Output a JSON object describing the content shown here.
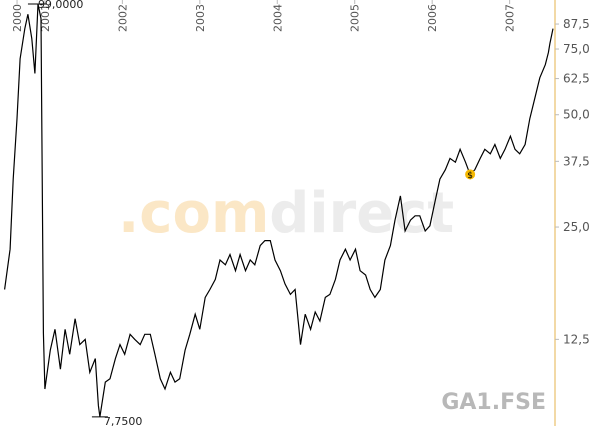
{
  "chart_data": {
    "type": "line",
    "symbol": "GA1.FSE",
    "watermark_a": ".com",
    "watermark_b": "direct",
    "high_label": "99,0000",
    "low_label": "7,7500",
    "dividend_marker": {
      "label": "$",
      "x": 2006.49
    },
    "log_scale": true,
    "grid": false,
    "color": "#000000",
    "xlim": [
      2000.42,
      2007.56
    ],
    "xticks": [
      {
        "value": 2000.64,
        "label": "2000"
      },
      2001,
      2002,
      2003,
      2004,
      2005,
      2006,
      2007
    ],
    "ylim": [
      7.6,
      101.5
    ],
    "yticks": [
      {
        "value": 12.5,
        "label": "12,5"
      },
      {
        "value": 25,
        "label": "25,0"
      },
      {
        "value": 37.5,
        "label": "37,5"
      },
      {
        "value": 50,
        "label": "50,0"
      },
      {
        "value": 62.5,
        "label": "62,5"
      },
      {
        "value": 75,
        "label": "75,0"
      },
      {
        "value": 87.5,
        "label": "87,5"
      }
    ],
    "x": [
      2000.48,
      2000.55,
      2000.59,
      2000.64,
      2000.68,
      2000.74,
      2000.78,
      2000.83,
      2000.87,
      2000.91,
      2000.95,
      2000.98,
      2001.0,
      2001.07,
      2001.13,
      2001.2,
      2001.26,
      2001.32,
      2001.39,
      2001.45,
      2001.52,
      2001.58,
      2001.65,
      2001.69,
      2001.71,
      2001.78,
      2001.84,
      2001.91,
      2001.97,
      2002.03,
      2002.1,
      2002.16,
      2002.23,
      2002.29,
      2002.36,
      2002.42,
      2002.49,
      2002.55,
      2002.62,
      2002.68,
      2002.74,
      2002.81,
      2002.87,
      2002.94,
      2003.0,
      2003.07,
      2003.13,
      2003.2,
      2003.26,
      2003.33,
      2003.39,
      2003.46,
      2003.52,
      2003.59,
      2003.65,
      2003.71,
      2003.78,
      2003.84,
      2003.91,
      2003.97,
      2004.04,
      2004.1,
      2004.17,
      2004.23,
      2004.3,
      2004.36,
      2004.43,
      2004.49,
      2004.55,
      2004.62,
      2004.68,
      2004.75,
      2004.81,
      2004.88,
      2004.94,
      2005.01,
      2005.07,
      2005.14,
      2005.2,
      2005.26,
      2005.33,
      2005.39,
      2005.46,
      2005.52,
      2005.59,
      2005.65,
      2005.72,
      2005.78,
      2005.84,
      2005.91,
      2005.97,
      2006.04,
      2006.1,
      2006.17,
      2006.23,
      2006.3,
      2006.36,
      2006.43,
      2006.49,
      2006.55,
      2006.62,
      2006.68,
      2006.75,
      2006.81,
      2006.88,
      2006.94,
      2007.01,
      2007.07,
      2007.13,
      2007.2,
      2007.26,
      2007.33,
      2007.39,
      2007.46,
      2007.5,
      2007.52,
      2007.56
    ],
    "values": [
      17.0,
      21.8,
      33.6,
      48.8,
      70.6,
      85,
      93,
      80,
      64.5,
      99,
      90.5,
      13.0,
      9.2,
      11.7,
      13.3,
      10.4,
      13.3,
      11.4,
      14.2,
      12.1,
      12.5,
      10.2,
      11.1,
      8.3,
      7.75,
      9.6,
      9.8,
      11.1,
      12.1,
      11.4,
      12.9,
      12.5,
      12.1,
      12.9,
      12.9,
      11.4,
      9.8,
      9.2,
      10.2,
      9.6,
      9.8,
      11.7,
      12.9,
      14.6,
      13.3,
      16.2,
      17.0,
      18.1,
      20.4,
      19.8,
      21.1,
      19.1,
      21.1,
      19.1,
      20.4,
      19.8,
      22.3,
      23.0,
      23.0,
      20.4,
      19.1,
      17.6,
      16.5,
      17.0,
      12.1,
      14.6,
      13.3,
      14.8,
      14.0,
      16.2,
      16.5,
      18.1,
      20.4,
      21.8,
      20.4,
      21.8,
      19.1,
      18.6,
      17.0,
      16.2,
      17.0,
      20.4,
      22.3,
      26.1,
      30.3,
      24.4,
      26.1,
      26.8,
      26.8,
      24.4,
      25.2,
      29.5,
      33.6,
      35.6,
      38.2,
      37.3,
      40.4,
      37.3,
      34.6,
      35.6,
      38.2,
      40.4,
      39.3,
      41.6,
      38.2,
      40.4,
      43.8,
      40.4,
      39.3,
      41.6,
      48.8,
      55.9,
      62.8,
      68.1,
      73.4,
      77.6,
      85.1
    ]
  }
}
